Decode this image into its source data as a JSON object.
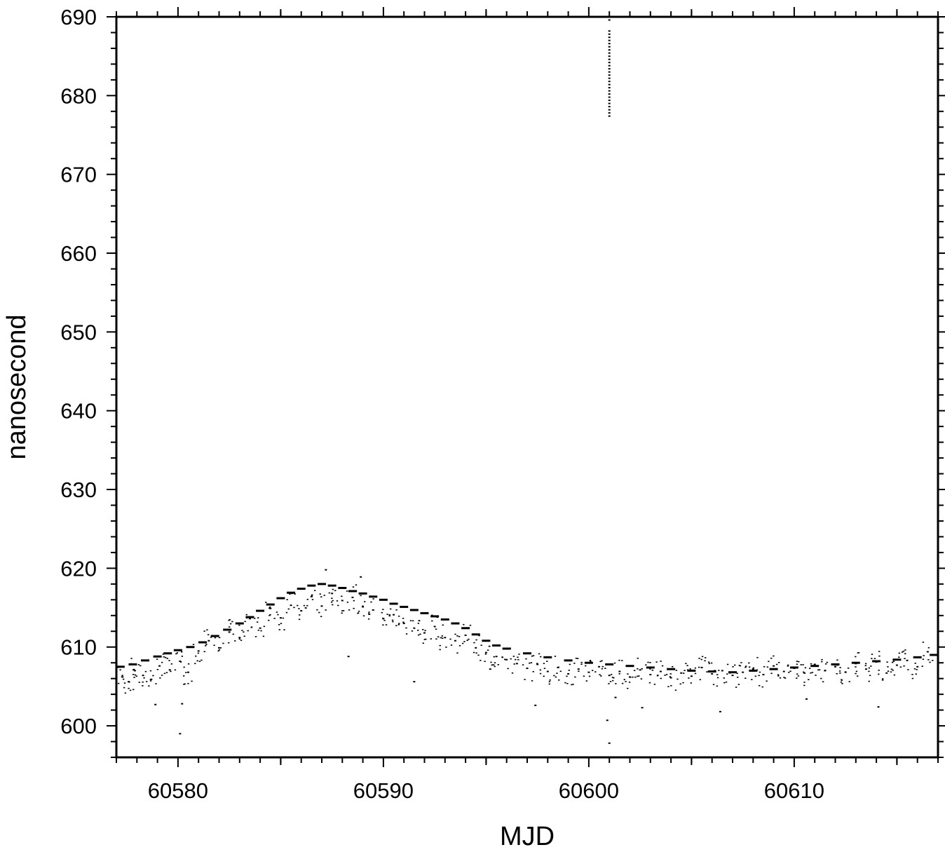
{
  "chart_data": {
    "type": "scatter",
    "title": "",
    "xlabel": "MJD",
    "ylabel": "nanosecond",
    "xlim": [
      60577,
      60617
    ],
    "ylim": [
      596,
      690
    ],
    "x_ticks": [
      60580,
      60590,
      60600,
      60610
    ],
    "y_ticks": [
      600,
      610,
      620,
      630,
      640,
      650,
      660,
      670,
      680,
      690
    ],
    "x_minor_step": 1,
    "y_minor_step": 2,
    "grid": false,
    "legend": "none",
    "colors": {
      "marker": "#000000",
      "axis": "#000000",
      "background": "#ffffff"
    },
    "series": [
      {
        "role": "trend",
        "marker": "dash",
        "x": [
          60577.2,
          60577.8,
          60578.4,
          60579.0,
          60579.5,
          60580.0,
          60580.6,
          60581.2,
          60581.8,
          60582.4,
          60583.0,
          60583.5,
          60584.0,
          60584.5,
          60585.0,
          60585.5,
          60586.0,
          60586.5,
          60587.0,
          60587.5,
          60588.0,
          60588.5,
          60589.0,
          60589.5,
          60590.0,
          60590.5,
          60591.0,
          60591.5,
          60592.0,
          60592.5,
          60593.0,
          60593.5,
          60594.0,
          60594.5,
          60595.0,
          60595.5,
          60596.0,
          60597.0,
          60598.0,
          60599.0,
          60600.0,
          60601.0,
          60602.0,
          60603.0,
          60604.0,
          60605.0,
          60606.0,
          60607.0,
          60608.0,
          60609.0,
          60610.0,
          60611.0,
          60612.0,
          60613.0,
          60614.0,
          60615.0,
          60616.0,
          60616.8
        ],
        "y": [
          607.5,
          607.8,
          608.3,
          608.8,
          609.2,
          609.6,
          610.0,
          610.6,
          611.4,
          612.2,
          613.0,
          613.8,
          614.6,
          615.4,
          616.2,
          616.9,
          617.4,
          617.8,
          618.0,
          617.8,
          617.5,
          617.1,
          616.8,
          616.4,
          616.0,
          615.5,
          615.1,
          614.7,
          614.3,
          613.9,
          613.5,
          613.0,
          612.4,
          611.6,
          610.8,
          610.2,
          609.8,
          609.2,
          608.7,
          608.3,
          608.0,
          607.8,
          607.6,
          607.4,
          607.2,
          607.0,
          606.9,
          606.8,
          607.0,
          607.2,
          607.4,
          607.6,
          607.8,
          608.0,
          608.2,
          608.4,
          608.7,
          609.0
        ]
      },
      {
        "role": "measurements",
        "marker": "point",
        "x": [
          60577.3,
          60577.6,
          60577.9,
          60578.3,
          60578.7,
          60579.1,
          60579.6,
          60580.1,
          60580.5,
          60581.0,
          60581.5,
          60582.0,
          60582.5,
          60583.0,
          60583.5,
          60584.0,
          60584.5,
          60585.0,
          60585.5,
          60586.0,
          60586.5,
          60587.0,
          60587.5,
          60588.0,
          60588.5,
          60589.0,
          60589.5,
          60590.0,
          60590.5,
          60591.0,
          60591.5,
          60592.0,
          60592.5,
          60593.0,
          60593.5,
          60594.0,
          60594.5,
          60595.0,
          60595.5,
          60596.0,
          60596.5,
          60597.0,
          60597.5,
          60598.0,
          60598.5,
          60599.0,
          60599.5,
          60600.0,
          60600.5,
          60601.0,
          60601.5,
          60602.0,
          60602.5,
          60603.0,
          60603.5,
          60604.0,
          60604.5,
          60605.0,
          60605.5,
          60606.0,
          60606.5,
          60607.0,
          60607.5,
          60608.0,
          60608.5,
          60609.0,
          60609.5,
          60610.0,
          60610.5,
          60611.0,
          60611.5,
          60612.0,
          60612.5,
          60613.0,
          60613.5,
          60614.0,
          60614.5,
          60615.0,
          60615.5,
          60616.0,
          60616.5
        ],
        "y": [
          606.2,
          605.6,
          607.0,
          606.4,
          605.9,
          607.6,
          607.1,
          608.2,
          606.8,
          609.5,
          610.8,
          609.9,
          611.9,
          611.2,
          613.6,
          612.4,
          614.9,
          613.7,
          615.3,
          614.6,
          616.4,
          615.2,
          616.8,
          615.9,
          616.3,
          615.1,
          614.7,
          613.6,
          614.1,
          613.0,
          612.4,
          611.8,
          612.6,
          611.2,
          610.8,
          611.5,
          609.9,
          609.3,
          608.8,
          608.4,
          607.9,
          607.3,
          607.8,
          606.9,
          607.4,
          606.6,
          607.2,
          606.8,
          607.5,
          606.4,
          606.9,
          606.2,
          607.1,
          606.5,
          606.9,
          606.1,
          606.7,
          606.3,
          607.4,
          606.6,
          607.0,
          606.4,
          606.8,
          607.2,
          606.5,
          607.6,
          606.9,
          607.3,
          606.7,
          607.8,
          607.0,
          607.5,
          606.8,
          607.9,
          607.2,
          608.1,
          606.7,
          607.7,
          608.3,
          607.5,
          609.4
        ]
      },
      {
        "role": "outliers",
        "marker": "point",
        "x": [
          60580.1,
          60580.2,
          60578.9,
          60588.3,
          60591.5,
          60595.2,
          60597.4,
          60600.9,
          60601.0,
          60601.3,
          60602.6,
          60606.4,
          60610.6,
          60614.1,
          60587.2,
          60588.9
        ],
        "y": [
          599.0,
          602.8,
          602.7,
          608.8,
          605.6,
          607.2,
          602.6,
          600.7,
          597.8,
          603.6,
          602.3,
          601.8,
          603.4,
          602.4,
          619.8,
          618.9
        ]
      },
      {
        "role": "spike",
        "marker": "point",
        "x": [
          60601.0,
          60601.0,
          60601.0,
          60601.0,
          60601.0,
          60601.0,
          60601.0,
          60601.0,
          60601.0,
          60601.0,
          60601.0,
          60601.0,
          60601.0,
          60601.0,
          60601.0,
          60601.0,
          60601.0,
          60601.0,
          60601.0,
          60601.0,
          60601.0,
          60601.0,
          60601.0,
          60601.0,
          60601.0,
          60601.0,
          60601.0,
          60601.0,
          60601.0
        ],
        "y": [
          677.4,
          677.8,
          678.2,
          678.6,
          679.0,
          679.4,
          679.8,
          680.2,
          680.6,
          681.0,
          681.4,
          681.8,
          682.2,
          682.6,
          683.0,
          683.4,
          683.8,
          684.2,
          684.6,
          685.0,
          685.4,
          685.8,
          686.2,
          686.6,
          687.0,
          687.4,
          687.8,
          688.2,
          689.6
        ]
      }
    ]
  }
}
